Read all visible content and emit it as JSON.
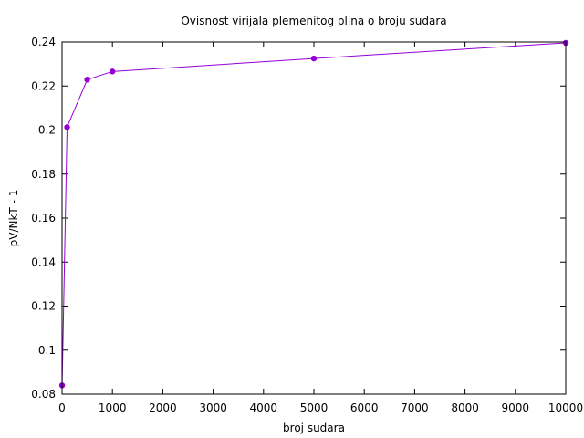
{
  "chart_data": {
    "type": "line",
    "title": "Ovisnost virijala plemenitog plina o broju sudara",
    "xlabel": "broj sudara",
    "ylabel": "pV/NkT - 1",
    "xlim": [
      0,
      10000
    ],
    "ylim": [
      0.08,
      0.24
    ],
    "x_ticks": [
      0,
      1000,
      2000,
      3000,
      4000,
      5000,
      6000,
      7000,
      8000,
      9000,
      10000
    ],
    "x_tick_labels": [
      "0",
      "1000",
      "2000",
      "3000",
      "4000",
      "5000",
      "6000",
      "7000",
      "8000",
      "9000",
      "10000"
    ],
    "y_ticks": [
      0.08,
      0.1,
      0.12,
      0.14,
      0.16,
      0.18,
      0.2,
      0.22,
      0.24
    ],
    "y_tick_labels": [
      "0.08",
      "0.1",
      "0.12",
      "0.14",
      "0.16",
      "0.18",
      "0.2",
      "0.22",
      "0.24"
    ],
    "grid": false,
    "series": [
      {
        "color": "#9400d3",
        "marker": "circle",
        "points": [
          {
            "x": 1,
            "y": 0.084
          },
          {
            "x": 100,
            "y": 0.2013
          },
          {
            "x": 500,
            "y": 0.2229
          },
          {
            "x": 1000,
            "y": 0.2266
          },
          {
            "x": 5000,
            "y": 0.2325
          },
          {
            "x": 10000,
            "y": 0.2396
          }
        ]
      }
    ]
  }
}
